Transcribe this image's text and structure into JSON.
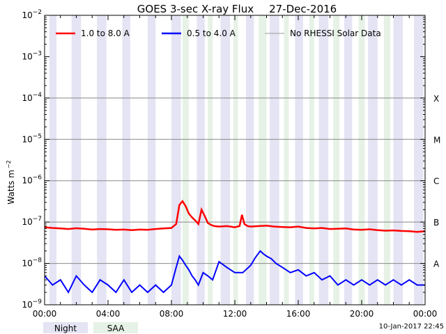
{
  "chart_data": {
    "type": "line",
    "title": "GOES 3-sec X-ray Flux",
    "date": "27-Dec-2016",
    "ylabel": "Watts m",
    "ylabel_exp": "−2",
    "yscale": "log",
    "ylim": [
      1e-09,
      0.01
    ],
    "y_ticks": [
      {
        "value": 0.01,
        "base": "10",
        "exp": "−2"
      },
      {
        "value": 0.001,
        "base": "10",
        "exp": "−3"
      },
      {
        "value": 0.0001,
        "base": "10",
        "exp": "−4"
      },
      {
        "value": 1e-05,
        "base": "10",
        "exp": "−5"
      },
      {
        "value": 1e-06,
        "base": "10",
        "exp": "−6"
      },
      {
        "value": 1e-07,
        "base": "10",
        "exp": "−7"
      },
      {
        "value": 1e-08,
        "base": "10",
        "exp": "−8"
      },
      {
        "value": 1e-09,
        "base": "10",
        "exp": "−9"
      }
    ],
    "flare_classes": [
      {
        "label": "X",
        "value": 0.0001
      },
      {
        "label": "M",
        "value": 1e-05
      },
      {
        "label": "C",
        "value": 1e-06
      },
      {
        "label": "B",
        "value": 1e-07
      },
      {
        "label": "A",
        "value": 1e-08
      }
    ],
    "xlim": [
      0,
      24
    ],
    "x_ticks": [
      {
        "value": 0,
        "label": "00:00"
      },
      {
        "value": 4,
        "label": "04:00"
      },
      {
        "value": 8,
        "label": "08:00"
      },
      {
        "value": 12,
        "label": "12:00"
      },
      {
        "value": 16,
        "label": "16:00"
      },
      {
        "value": 20,
        "label": "20:00"
      },
      {
        "value": 24,
        "label": "00:00"
      }
    ],
    "grid": "horizontal at decades",
    "legend": [
      {
        "label": "1.0 to 8.0 A",
        "color": "#ff0000"
      },
      {
        "label": "0.5 to 4.0 A",
        "color": "#0000ff"
      },
      {
        "label": "No RHESSI Solar Data",
        "color": "#999999"
      }
    ],
    "legend_placement": "top",
    "shading_legend": [
      {
        "label": "Night",
        "color": "#e4e4f4"
      },
      {
        "label": "SAA",
        "color": "#e6f2e6"
      }
    ],
    "night_intervals": [
      [
        0.3,
        0.75
      ],
      [
        1.7,
        2.3
      ],
      [
        3.3,
        3.9
      ],
      [
        4.9,
        5.4
      ],
      [
        6.5,
        7.0
      ],
      [
        8.0,
        8.6
      ],
      [
        9.6,
        10.1
      ],
      [
        11.1,
        11.7
      ],
      [
        12.7,
        13.2
      ],
      [
        14.2,
        14.8
      ],
      [
        15.8,
        16.3
      ],
      [
        17.3,
        17.9
      ],
      [
        18.9,
        19.4
      ],
      [
        20.4,
        21.0
      ],
      [
        22.0,
        22.6
      ],
      [
        23.3,
        23.9
      ]
    ],
    "saa_intervals": [
      [
        8.7,
        9.1
      ],
      [
        10.3,
        10.6
      ],
      [
        11.9,
        12.2
      ],
      [
        13.5,
        14.0
      ],
      [
        15.1,
        15.4
      ],
      [
        16.7,
        17.0
      ],
      [
        18.2,
        18.6
      ],
      [
        19.8,
        20.2
      ],
      [
        21.4,
        21.8
      ]
    ],
    "series": [
      {
        "name": "1.0 to 8.0 A",
        "color": "#ff0000",
        "x": [
          0,
          0.5,
          1,
          1.5,
          2,
          2.5,
          3,
          3.5,
          4,
          4.5,
          5,
          5.5,
          6,
          6.5,
          7,
          7.5,
          8,
          8.3,
          8.5,
          8.7,
          8.9,
          9.1,
          9.3,
          9.5,
          9.7,
          9.9,
          10.1,
          10.3,
          10.5,
          10.7,
          11,
          11.5,
          12,
          12.3,
          12.45,
          12.6,
          12.8,
          13,
          13.5,
          14,
          14.5,
          15,
          15.5,
          16,
          16.5,
          17,
          17.5,
          18,
          18.5,
          19,
          19.5,
          20,
          20.5,
          21,
          21.5,
          22,
          22.5,
          23,
          23.5,
          24
        ],
        "y": [
          7.5e-08,
          7.2e-08,
          7e-08,
          6.8e-08,
          7.1e-08,
          6.9e-08,
          6.6e-08,
          6.8e-08,
          6.7e-08,
          6.5e-08,
          6.6e-08,
          6.4e-08,
          6.6e-08,
          6.5e-08,
          6.8e-08,
          7e-08,
          7.2e-08,
          9e-08,
          2.6e-07,
          3.2e-07,
          2.4e-07,
          1.6e-07,
          1.3e-07,
          1.1e-07,
          9e-08,
          2e-07,
          1.4e-07,
          9.5e-08,
          8.5e-08,
          8e-08,
          7.8e-08,
          8e-08,
          7.5e-08,
          8e-08,
          1.5e-07,
          9e-08,
          8e-08,
          7.8e-08,
          8e-08,
          8.2e-08,
          7.8e-08,
          7.6e-08,
          7.5e-08,
          7.8e-08,
          7.2e-08,
          7e-08,
          7.2e-08,
          6.8e-08,
          6.9e-08,
          7e-08,
          6.6e-08,
          6.5e-08,
          6.7e-08,
          6.4e-08,
          6.2e-08,
          6.3e-08,
          6.1e-08,
          6e-08,
          5.8e-08,
          6e-08
        ]
      },
      {
        "name": "0.5 to 4.0 A",
        "color": "#0000ff",
        "x": [
          0,
          0.5,
          1,
          1.5,
          2,
          2.5,
          3,
          3.5,
          4,
          4.5,
          5,
          5.5,
          6,
          6.5,
          7,
          7.5,
          8,
          8.3,
          8.5,
          8.7,
          8.9,
          9.1,
          9.3,
          9.5,
          9.7,
          10,
          10.3,
          10.6,
          11,
          11.5,
          12,
          12.5,
          13,
          13.3,
          13.6,
          13.8,
          14,
          14.3,
          14.6,
          15,
          15.5,
          16,
          16.5,
          17,
          17.5,
          18,
          18.5,
          19,
          19.5,
          20,
          20.5,
          21,
          21.5,
          22,
          22.5,
          23,
          23.5,
          24
        ],
        "y": [
          5e-09,
          3e-09,
          4e-09,
          2e-09,
          5e-09,
          3e-09,
          2e-09,
          4e-09,
          3e-09,
          2e-09,
          4e-09,
          2e-09,
          3e-09,
          2e-09,
          3e-09,
          2e-09,
          3e-09,
          8e-09,
          1.5e-08,
          1.2e-08,
          9e-09,
          7e-09,
          5e-09,
          4e-09,
          3e-09,
          6e-09,
          5e-09,
          4e-09,
          1.1e-08,
          8e-09,
          6e-09,
          6e-09,
          9e-09,
          1.4e-08,
          2e-08,
          1.7e-08,
          1.5e-08,
          1.3e-08,
          1e-08,
          8e-09,
          6e-09,
          7e-09,
          5e-09,
          6e-09,
          4e-09,
          5e-09,
          3e-09,
          4e-09,
          3e-09,
          4e-09,
          3e-09,
          4e-09,
          3e-09,
          4e-09,
          3e-09,
          4e-09,
          3e-09,
          3e-09
        ]
      }
    ],
    "timestamp": "10-Jan-2017 22:45"
  }
}
